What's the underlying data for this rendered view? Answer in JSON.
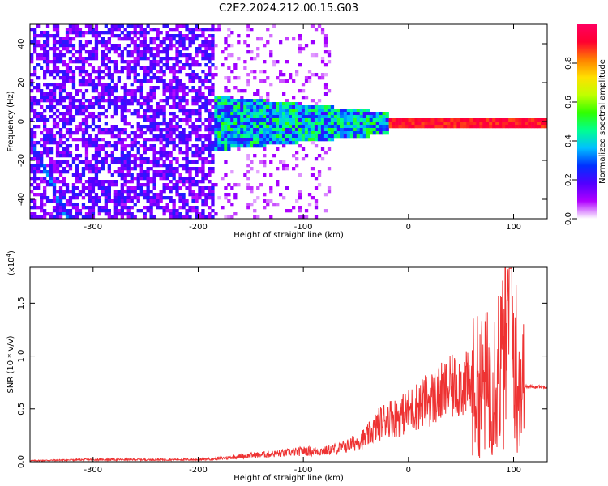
{
  "title": "C2E2.2024.212.00.15.G03",
  "chart_data": [
    {
      "type": "heatmap",
      "xlabel": "Height of straight line (km)",
      "ylabel": "Frequency (Hz)",
      "xlim": [
        -360,
        132
      ],
      "ylim": [
        -50,
        50
      ],
      "x_ticks": [
        -300,
        -200,
        -100,
        0,
        100
      ],
      "y_ticks": [
        -40,
        -20,
        0,
        20,
        40
      ],
      "colorbar": {
        "label": "Normalized spectral amplitude",
        "range": [
          0.0,
          1.0
        ],
        "ticks": [
          "0.0",
          "0.2",
          "0.4",
          "0.6",
          "0.8"
        ],
        "colors": [
          "#ffffff",
          "#b000ff",
          "#5000ff",
          "#0030ff",
          "#00c0ff",
          "#00ff90",
          "#30ff00",
          "#c0ff00",
          "#ffe000",
          "#ff8000",
          "#ff0030",
          "#ff0060"
        ]
      },
      "features": {
        "noise_region_km": [
          -360,
          -185
        ],
        "sparse_noise_region_km": [
          -185,
          -75
        ],
        "band_start_km": -185,
        "band_center_hz": 0,
        "strong_line_region_km": [
          -20,
          132
        ]
      },
      "grid": false
    },
    {
      "type": "line",
      "xlabel": "Height of straight line (km)",
      "ylabel": "SNR (10 * v/v)",
      "y_multiplier": "(x10",
      "y_multiplier_exp": "4",
      "y_multiplier_close": ")",
      "xlim": [
        -360,
        132
      ],
      "ylim": [
        0,
        18400
      ],
      "x_ticks": [
        -300,
        -200,
        -100,
        0,
        100
      ],
      "y_ticks": [
        0.0,
        0.5,
        1.0,
        1.5
      ],
      "color": "#ee3333",
      "x": [
        -360,
        -300,
        -250,
        -200,
        -180,
        -150,
        -120,
        -100,
        -80,
        -60,
        -40,
        -30,
        -20,
        -10,
        0,
        10,
        20,
        40,
        50,
        60,
        70,
        80,
        85,
        90,
        95,
        100,
        105,
        110,
        120,
        132
      ],
      "y": [
        100,
        200,
        200,
        200,
        300,
        600,
        800,
        1000,
        1000,
        1400,
        2300,
        3400,
        4200,
        4200,
        4800,
        5400,
        5900,
        6900,
        7400,
        7100,
        7200,
        7800,
        9500,
        9200,
        12000,
        11000,
        8000,
        7100,
        7100,
        7100
      ],
      "grid": false
    }
  ]
}
